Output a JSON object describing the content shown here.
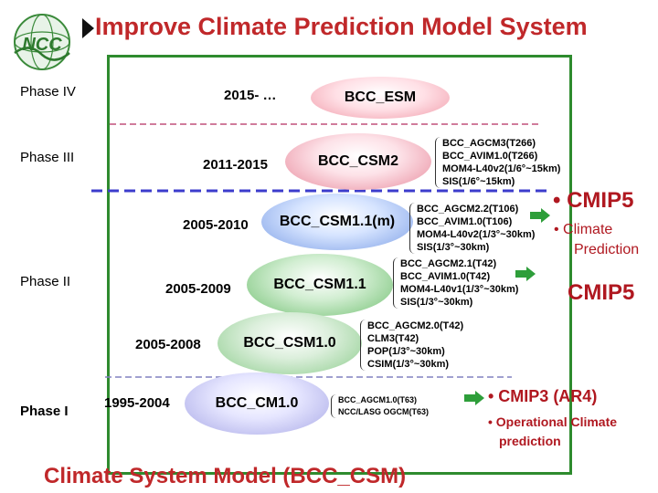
{
  "title": "Improve Climate Prediction Model System",
  "bottom_title": "Climate System Model (BCC_CSM)",
  "logo": {
    "text": "NCC"
  },
  "phases": [
    "Phase IV",
    "Phase III",
    "Phase II",
    "Phase I"
  ],
  "periods": [
    "2015- …",
    "2011-2015",
    "2005-2010",
    "2005-2009",
    "2005-2008",
    "1995-2004"
  ],
  "models": [
    "BCC_ESM",
    "BCC_CSM2",
    "BCC_CSM1.1(m)",
    "BCC_CSM1.1",
    "BCC_CSM1.0",
    "BCC_CM1.0"
  ],
  "components": {
    "csm2": [
      "BCC_AGCM3(T266)",
      "BCC_AVIM1.0(T266)",
      "MOM4-L40v2(1/6°~15km)",
      "SIS(1/6°~15km)"
    ],
    "csm11m": [
      "BCC_AGCM2.2(T106)",
      "BCC_AVIM1.0(T106)",
      "MOM4-L40v2(1/3°~30km)",
      "SIS(1/3°~30km)"
    ],
    "csm11": [
      "BCC_AGCM2.1(T42)",
      "BCC_AVIM1.0(T42)",
      "MOM4-L40v1(1/3°~30km)",
      "SIS(1/3°~30km)"
    ],
    "csm10": [
      "BCC_AGCM2.0(T42)",
      "CLM3(T42)",
      "POP(1/3°~30km)",
      "CSIM(1/3°~30km)"
    ],
    "cm10": [
      "BCC_AGCM1.0(T63)",
      "NCC/LASG OGCM(T63)"
    ]
  },
  "cmip": {
    "cmip5_bullet": "• CMIP5",
    "climate_bullet": "• Climate",
    "prediction": "Prediction",
    "cmip5": "CMIP5",
    "cmip3_bullet": "• CMIP3 (AR4)",
    "operational_bullet": "• Operational Climate",
    "operational_prediction": "prediction"
  },
  "colors": {
    "title_red": "#c0282a",
    "frame_green": "#2e8b2e",
    "phase_divider_pink": "#c0507a",
    "phase_divider_blue": "#3c3ccc",
    "arrow_green": "#2e9e3a"
  }
}
